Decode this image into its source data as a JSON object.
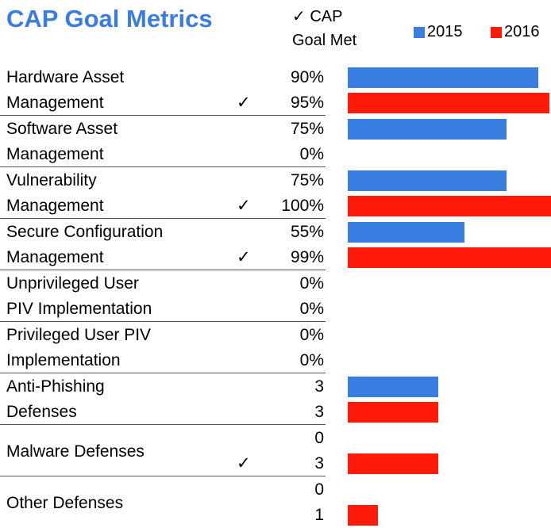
{
  "chart_data": {
    "type": "bar",
    "title": "CAP Goal Metrics",
    "goal_legend": [
      "✓ CAP",
      "Goal Met"
    ],
    "goal_mark": "✓",
    "categories": [
      [
        "Hardware Asset",
        "Management"
      ],
      [
        "Software Asset",
        "Management"
      ],
      [
        "Vulnerability",
        "Management"
      ],
      [
        "Secure Configuration",
        "Management"
      ],
      [
        "Unprivileged User",
        "PIV Implementation"
      ],
      [
        "Privileged User PIV",
        "Implementation"
      ],
      [
        "Anti-Phishing",
        "Defenses"
      ],
      [
        "Malware Defenses"
      ],
      [
        "Other Defenses"
      ]
    ],
    "goal_met": [
      true,
      false,
      true,
      true,
      false,
      false,
      false,
      true,
      false
    ],
    "series": [
      {
        "name": "2015",
        "color": "#3a7de0",
        "values": [
          90,
          75,
          75,
          55,
          0,
          0,
          3,
          0,
          0
        ],
        "value_labels": [
          "90%",
          "75%",
          "75%",
          "55%",
          "0%",
          "0%",
          "3",
          "0",
          "0"
        ]
      },
      {
        "name": "2016",
        "color": "#ff1a0a",
        "values": [
          95,
          0,
          100,
          99,
          0,
          0,
          3,
          3,
          1
        ],
        "value_labels": [
          "95%",
          "0%",
          "100%",
          "99%",
          "0%",
          "0%",
          "3",
          "3",
          "1"
        ]
      }
    ],
    "xlim": [
      0,
      100
    ],
    "count_xlim": [
      0,
      7
    ]
  }
}
